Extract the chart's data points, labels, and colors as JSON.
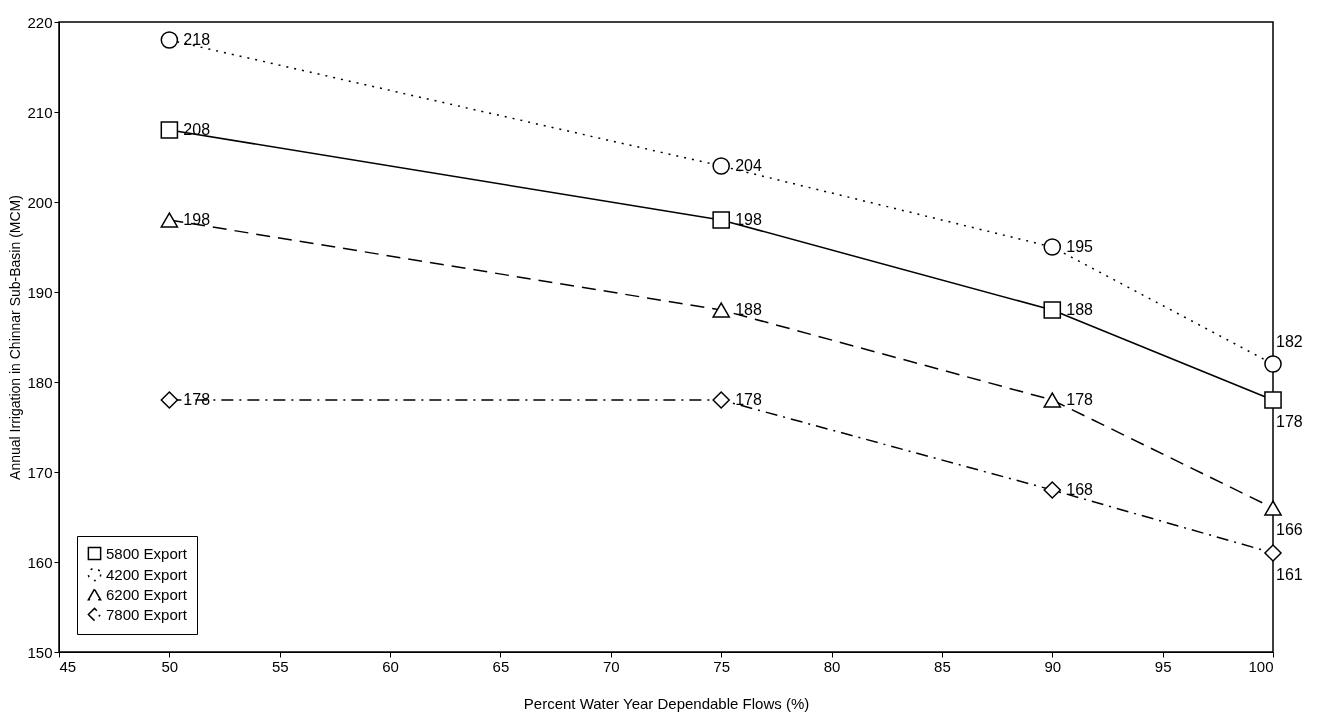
{
  "chart_data": {
    "type": "line",
    "xlabel": "Percent Water Year Dependable Flows (%)",
    "ylabel": "Annual Irrigation in Chinnar Sub-Basin (MCM)",
    "x": [
      50,
      75,
      90,
      100
    ],
    "series": [
      {
        "name": "5800 Export",
        "color": "#000000",
        "marker": "square",
        "line_style": "solid",
        "values": [
          208,
          198,
          188,
          178
        ]
      },
      {
        "name": "4200 Export",
        "color": "#000000",
        "marker": "circle",
        "line_style": "dotted",
        "values": [
          218,
          204,
          195,
          182
        ]
      },
      {
        "name": "6200 Export",
        "color": "#000000",
        "marker": "triangle",
        "line_style": "dashed",
        "values": [
          198,
          188,
          178,
          166
        ]
      },
      {
        "name": "7800 Export",
        "color": "#000000",
        "marker": "diamond",
        "line_style": "dashdot",
        "values": [
          178,
          178,
          168,
          161
        ]
      }
    ],
    "xlim": [
      45,
      100
    ],
    "xticks": [
      45,
      50,
      55,
      60,
      65,
      70,
      75,
      80,
      85,
      90,
      95,
      100
    ],
    "ylim": [
      150,
      220
    ],
    "yticks": [
      150,
      160,
      170,
      180,
      190,
      200,
      210,
      220
    ],
    "grid": false,
    "legend": "bottom left",
    "data_labels": true
  }
}
